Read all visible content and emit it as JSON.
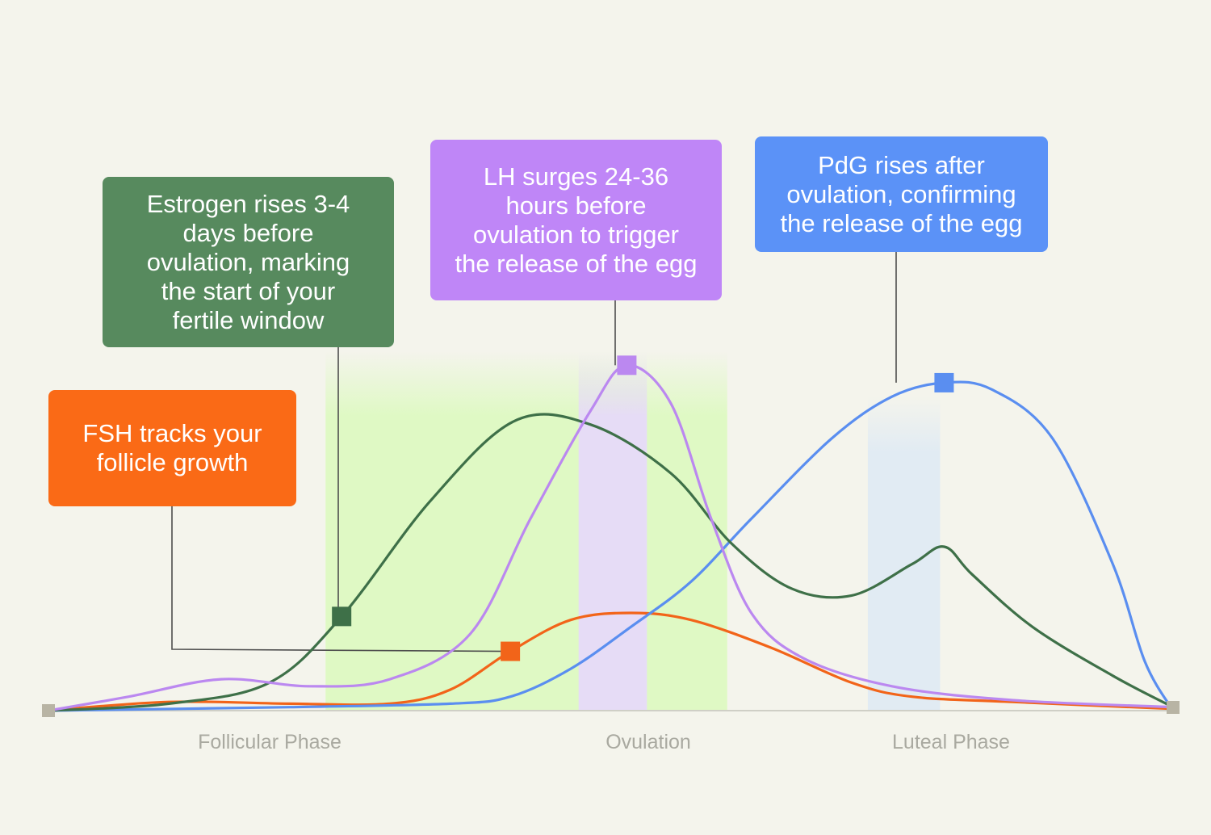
{
  "chart_data": {
    "type": "line",
    "xlabel": "",
    "ylabel": "",
    "phases": [
      "Follicular Phase",
      "Ovulation",
      "Luteal Phase"
    ],
    "x_range": [
      0,
      28
    ],
    "y_range": [
      0,
      1
    ],
    "grid": false,
    "legend": "none",
    "series": [
      {
        "name": "Estrogen",
        "color": "#3e7048",
        "values": [
          [
            0,
            0
          ],
          [
            3,
            0.02
          ],
          [
            5.5,
            0.08
          ],
          [
            7.3,
            0.27
          ],
          [
            9.5,
            0.6
          ],
          [
            11.6,
            0.83
          ],
          [
            13.5,
            0.82
          ],
          [
            15.5,
            0.68
          ],
          [
            17,
            0.48
          ],
          [
            18.5,
            0.35
          ],
          [
            20,
            0.33
          ],
          [
            21.5,
            0.42
          ],
          [
            22.3,
            0.47
          ],
          [
            23,
            0.39
          ],
          [
            24.5,
            0.24
          ],
          [
            26.5,
            0.1
          ],
          [
            28,
            0.01
          ]
        ],
        "marker": [
          7.3,
          0.27
        ]
      },
      {
        "name": "LH",
        "color": "#bb88f0",
        "values": [
          [
            0,
            0
          ],
          [
            2,
            0.04
          ],
          [
            4.3,
            0.09
          ],
          [
            6.5,
            0.07
          ],
          [
            8.5,
            0.09
          ],
          [
            10.5,
            0.22
          ],
          [
            12,
            0.55
          ],
          [
            13.5,
            0.86
          ],
          [
            14.4,
            0.99
          ],
          [
            15.5,
            0.88
          ],
          [
            16.5,
            0.55
          ],
          [
            17.5,
            0.28
          ],
          [
            18.8,
            0.15
          ],
          [
            21,
            0.07
          ],
          [
            24,
            0.03
          ],
          [
            28,
            0.01
          ]
        ],
        "marker": [
          14.4,
          0.99
        ]
      },
      {
        "name": "PdG",
        "color": "#5a8ef0",
        "values": [
          [
            0,
            0
          ],
          [
            6,
            0.01
          ],
          [
            10,
            0.02
          ],
          [
            11.5,
            0.04
          ],
          [
            13,
            0.12
          ],
          [
            14.5,
            0.24
          ],
          [
            16,
            0.37
          ],
          [
            17.5,
            0.55
          ],
          [
            19.5,
            0.78
          ],
          [
            21,
            0.9
          ],
          [
            22.3,
            0.94
          ],
          [
            23.5,
            0.92
          ],
          [
            25,
            0.78
          ],
          [
            26.5,
            0.42
          ],
          [
            27.3,
            0.14
          ],
          [
            28,
            0
          ]
        ],
        "marker": [
          22.3,
          0.94
        ]
      },
      {
        "name": "FSH",
        "color": "#f26419",
        "values": [
          [
            0,
            0
          ],
          [
            3,
            0.025
          ],
          [
            6,
            0.02
          ],
          [
            8.5,
            0.02
          ],
          [
            10,
            0.06
          ],
          [
            11.5,
            0.17
          ],
          [
            13,
            0.26
          ],
          [
            14.5,
            0.28
          ],
          [
            16,
            0.26
          ],
          [
            18,
            0.18
          ],
          [
            20,
            0.08
          ],
          [
            21.5,
            0.04
          ],
          [
            24,
            0.025
          ],
          [
            28,
            0.005
          ]
        ],
        "marker": [
          11.5,
          0.17
        ]
      }
    ],
    "annotations": [
      {
        "series": "FSH",
        "text": "FSH tracks your follicle growth"
      },
      {
        "series": "Estrogen",
        "text": "Estrogen rises 3-4 days before ovulation, marking the start of your fertile window"
      },
      {
        "series": "LH",
        "text": "LH surges 24-36 hours before ovulation to trigger the release of the egg"
      },
      {
        "series": "PdG",
        "text": "PdG rises after ovulation, confirming the release of the egg"
      }
    ],
    "bands": [
      {
        "name": "fertile-window",
        "from": 6.9,
        "to": 16.9,
        "color": "#dff9c4"
      },
      {
        "name": "ovulation",
        "from": 13.2,
        "to": 14.9,
        "color": "#e6dcf6"
      },
      {
        "name": "luteal-marker",
        "from": 20.4,
        "to": 22.2,
        "color": "#e1ebf3"
      }
    ]
  },
  "callouts": {
    "fsh": [
      "FSH tracks your",
      "follicle growth"
    ],
    "estrogen": [
      "Estrogen rises 3-4",
      "days before",
      "ovulation, marking",
      "the start of your",
      "fertile window"
    ],
    "lh": [
      "LH surges 24-36",
      "hours before",
      "ovulation to trigger",
      "the release of the egg"
    ],
    "pdg": [
      "PdG rises after",
      "ovulation, confirming",
      "the release of the egg"
    ]
  }
}
